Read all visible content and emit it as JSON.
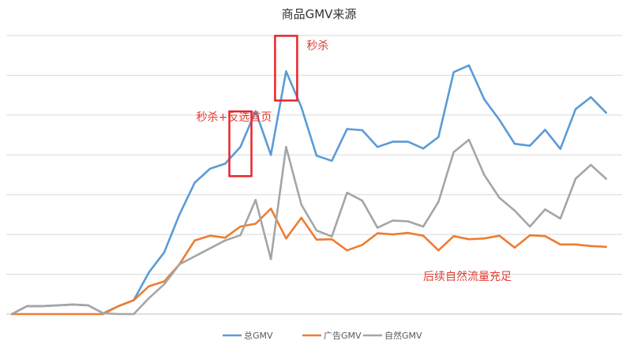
{
  "chart_data": {
    "type": "line",
    "title": "商品GMV来源",
    "xlabel": "",
    "ylabel": "",
    "ylim": [
      0,
      7
    ],
    "grid": true,
    "legend_position": "bottom",
    "x": [
      1,
      2,
      3,
      4,
      5,
      6,
      7,
      8,
      9,
      10,
      11,
      12,
      13,
      14,
      15,
      16,
      17,
      18,
      19,
      20,
      21,
      22,
      23,
      24,
      25,
      26,
      27,
      28,
      29,
      30,
      31,
      32,
      33,
      34,
      35,
      36,
      37,
      38,
      39,
      40
    ],
    "series": [
      {
        "name": "总GMV",
        "color": "#5B9BD5",
        "values": [
          0,
          0.2,
          0.2,
          0.22,
          0.24,
          0.22,
          0.02,
          0.2,
          0.35,
          1.05,
          1.55,
          2.5,
          3.3,
          3.65,
          3.78,
          4.2,
          5.1,
          4.0,
          6.1,
          5.2,
          3.98,
          3.85,
          4.65,
          4.62,
          4.2,
          4.33,
          4.33,
          4.16,
          4.45,
          6.08,
          6.25,
          5.4,
          4.88,
          4.28,
          4.23,
          4.63,
          4.15,
          5.15,
          5.45,
          5.06
        ]
      },
      {
        "name": "广告GMV",
        "color": "#ED7D31",
        "values": [
          0,
          0,
          0,
          0,
          0,
          0,
          0,
          0.2,
          0.35,
          0.7,
          0.82,
          1.25,
          1.85,
          1.97,
          1.92,
          2.2,
          2.27,
          2.65,
          1.9,
          2.42,
          1.87,
          1.88,
          1.6,
          1.74,
          2.03,
          2.0,
          2.04,
          1.97,
          1.6,
          1.96,
          1.88,
          1.9,
          1.97,
          1.67,
          1.98,
          1.96,
          1.75,
          1.75,
          1.71,
          1.69
        ]
      },
      {
        "name": "自然GMV",
        "color": "#A5A5A5",
        "values": [
          0,
          0.2,
          0.2,
          0.22,
          0.24,
          0.22,
          0.02,
          0,
          0,
          0.4,
          0.75,
          1.25,
          1.45,
          1.65,
          1.85,
          1.98,
          2.87,
          1.38,
          4.2,
          2.75,
          2.1,
          1.95,
          3.05,
          2.85,
          2.17,
          2.35,
          2.33,
          2.2,
          2.82,
          4.07,
          4.38,
          3.5,
          2.92,
          2.6,
          2.2,
          2.63,
          2.4,
          3.4,
          3.75,
          3.4
        ]
      }
    ],
    "annotations": [
      {
        "text": "秒杀+反选首页",
        "color": "#E03C31",
        "box_at_x": 16
      },
      {
        "text": "秒杀",
        "color": "#E03C31",
        "box_at_x": 19
      },
      {
        "text": "后续自然流量充足",
        "color": "#E03C31"
      }
    ]
  }
}
